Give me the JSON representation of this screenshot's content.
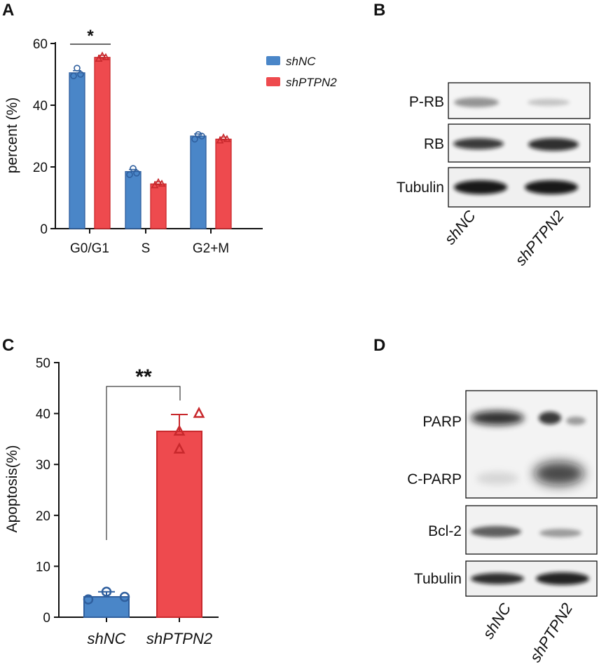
{
  "panels": {
    "A": "A",
    "B": "B",
    "C": "C",
    "D": "D"
  },
  "colors": {
    "shNC": "#4a86c8",
    "shNC_dark": "#2f5f9e",
    "shPTPN2": "#ee4a4e",
    "shPTPN2_dark": "#c8282c"
  },
  "chart_data": [
    {
      "type": "bar",
      "categories": [
        "G0/G1",
        "S",
        "G2+M"
      ],
      "series": [
        {
          "name": "shNC",
          "values": [
            50.5,
            18.5,
            30
          ],
          "points": [
            [
              49.5,
              52,
              50
            ],
            [
              17.5,
              19.5,
              18
            ],
            [
              29,
              30.5,
              30
            ]
          ]
        },
        {
          "name": "shPTPN2",
          "values": [
            55.5,
            14.5,
            29
          ],
          "points": [
            [
              55,
              56,
              55.5
            ],
            [
              14,
              15,
              14.5
            ],
            [
              28.5,
              29.5,
              29
            ]
          ]
        }
      ],
      "ylabel": "percent (%)",
      "yticks": [
        "0",
        "20",
        "40",
        "60"
      ],
      "ylim": [
        0,
        60
      ],
      "legend": {
        "position": "right",
        "entries": [
          "shNC",
          "shPTPN2"
        ]
      },
      "significance": [
        {
          "category": "G0/G1",
          "label": "*"
        }
      ]
    },
    {
      "type": "bar",
      "categories": [
        "shNC",
        "shPTPN2"
      ],
      "values": [
        4,
        36.5
      ],
      "errors": [
        1,
        3.3
      ],
      "points": [
        [
          3.5,
          5,
          4
        ],
        [
          33,
          36.5,
          40
        ]
      ],
      "ylabel": "Apoptosis(%)",
      "yticks": [
        "0",
        "10",
        "20",
        "30",
        "40",
        "50"
      ],
      "ylim": [
        0,
        50
      ],
      "significance": [
        {
          "between": [
            "shNC",
            "shPTPN2"
          ],
          "label": "**"
        }
      ]
    }
  ],
  "blot_B": {
    "rows": [
      "P-RB",
      "RB",
      "Tubulin"
    ],
    "lanes": [
      "shNC",
      "shPTPN2"
    ]
  },
  "blot_D": {
    "rows": [
      "PARP",
      "C-PARP",
      "Bcl-2",
      "Tubulin"
    ],
    "lanes": [
      "shNC",
      "shPTPN2"
    ]
  }
}
